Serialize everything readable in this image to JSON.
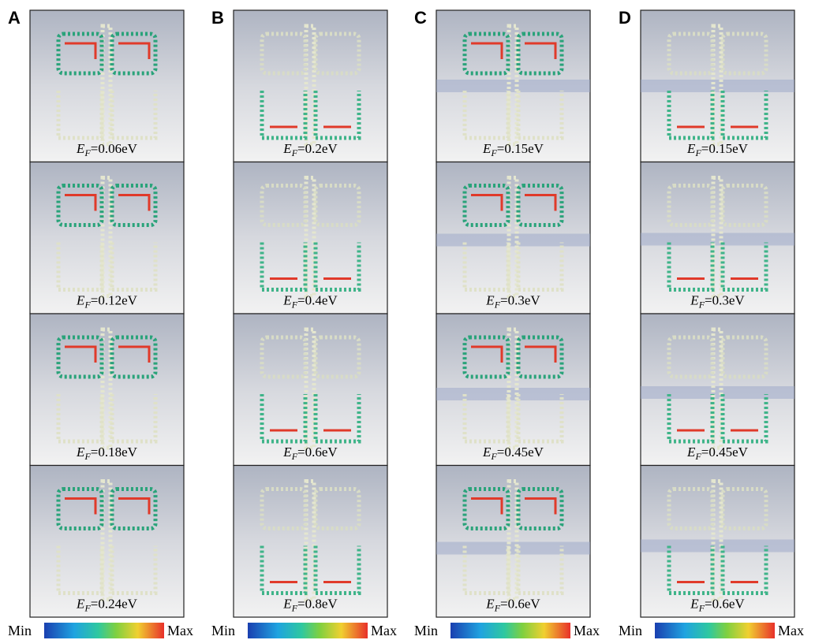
{
  "columns": [
    {
      "label": "A",
      "panels": [
        {
          "symbol": "E",
          "subscript": "F",
          "text": "=0.06eV"
        },
        {
          "symbol": "E",
          "subscript": "F",
          "text": "=0.12eV"
        },
        {
          "symbol": "E",
          "subscript": "F",
          "text": "=0.18eV"
        },
        {
          "symbol": "E",
          "subscript": "F",
          "text": "=0.24eV"
        }
      ],
      "colorbar": {
        "min": "Min",
        "max": "Max"
      }
    },
    {
      "label": "B",
      "panels": [
        {
          "symbol": "E",
          "subscript": "F",
          "text": "=0.2eV"
        },
        {
          "symbol": "E",
          "subscript": "F",
          "text": "=0.4eV"
        },
        {
          "symbol": "E",
          "subscript": "F",
          "text": "=0.6eV"
        },
        {
          "symbol": "E",
          "subscript": "F",
          "text": "=0.8eV"
        }
      ],
      "colorbar": {
        "min": "Min",
        "max": "Max"
      }
    },
    {
      "label": "C",
      "panels": [
        {
          "symbol": "E",
          "subscript": "F",
          "text": "=0.15eV"
        },
        {
          "symbol": "E",
          "subscript": "F",
          "text": "=0.3eV"
        },
        {
          "symbol": "E",
          "subscript": "F",
          "text": "=0.45eV"
        },
        {
          "symbol": "E",
          "subscript": "F",
          "text": "=0.6eV"
        }
      ],
      "colorbar": {
        "min": "Min",
        "max": "Max"
      }
    },
    {
      "label": "D",
      "panels": [
        {
          "symbol": "E",
          "subscript": "F",
          "text": "=0.15eV"
        },
        {
          "symbol": "E",
          "subscript": "F",
          "text": "=0.3eV"
        },
        {
          "symbol": "E",
          "subscript": "F",
          "text": "=0.45eV"
        },
        {
          "symbol": "E",
          "subscript": "F",
          "text": "=0.6eV"
        }
      ],
      "colorbar": {
        "min": "Min",
        "max": "Max"
      }
    }
  ]
}
